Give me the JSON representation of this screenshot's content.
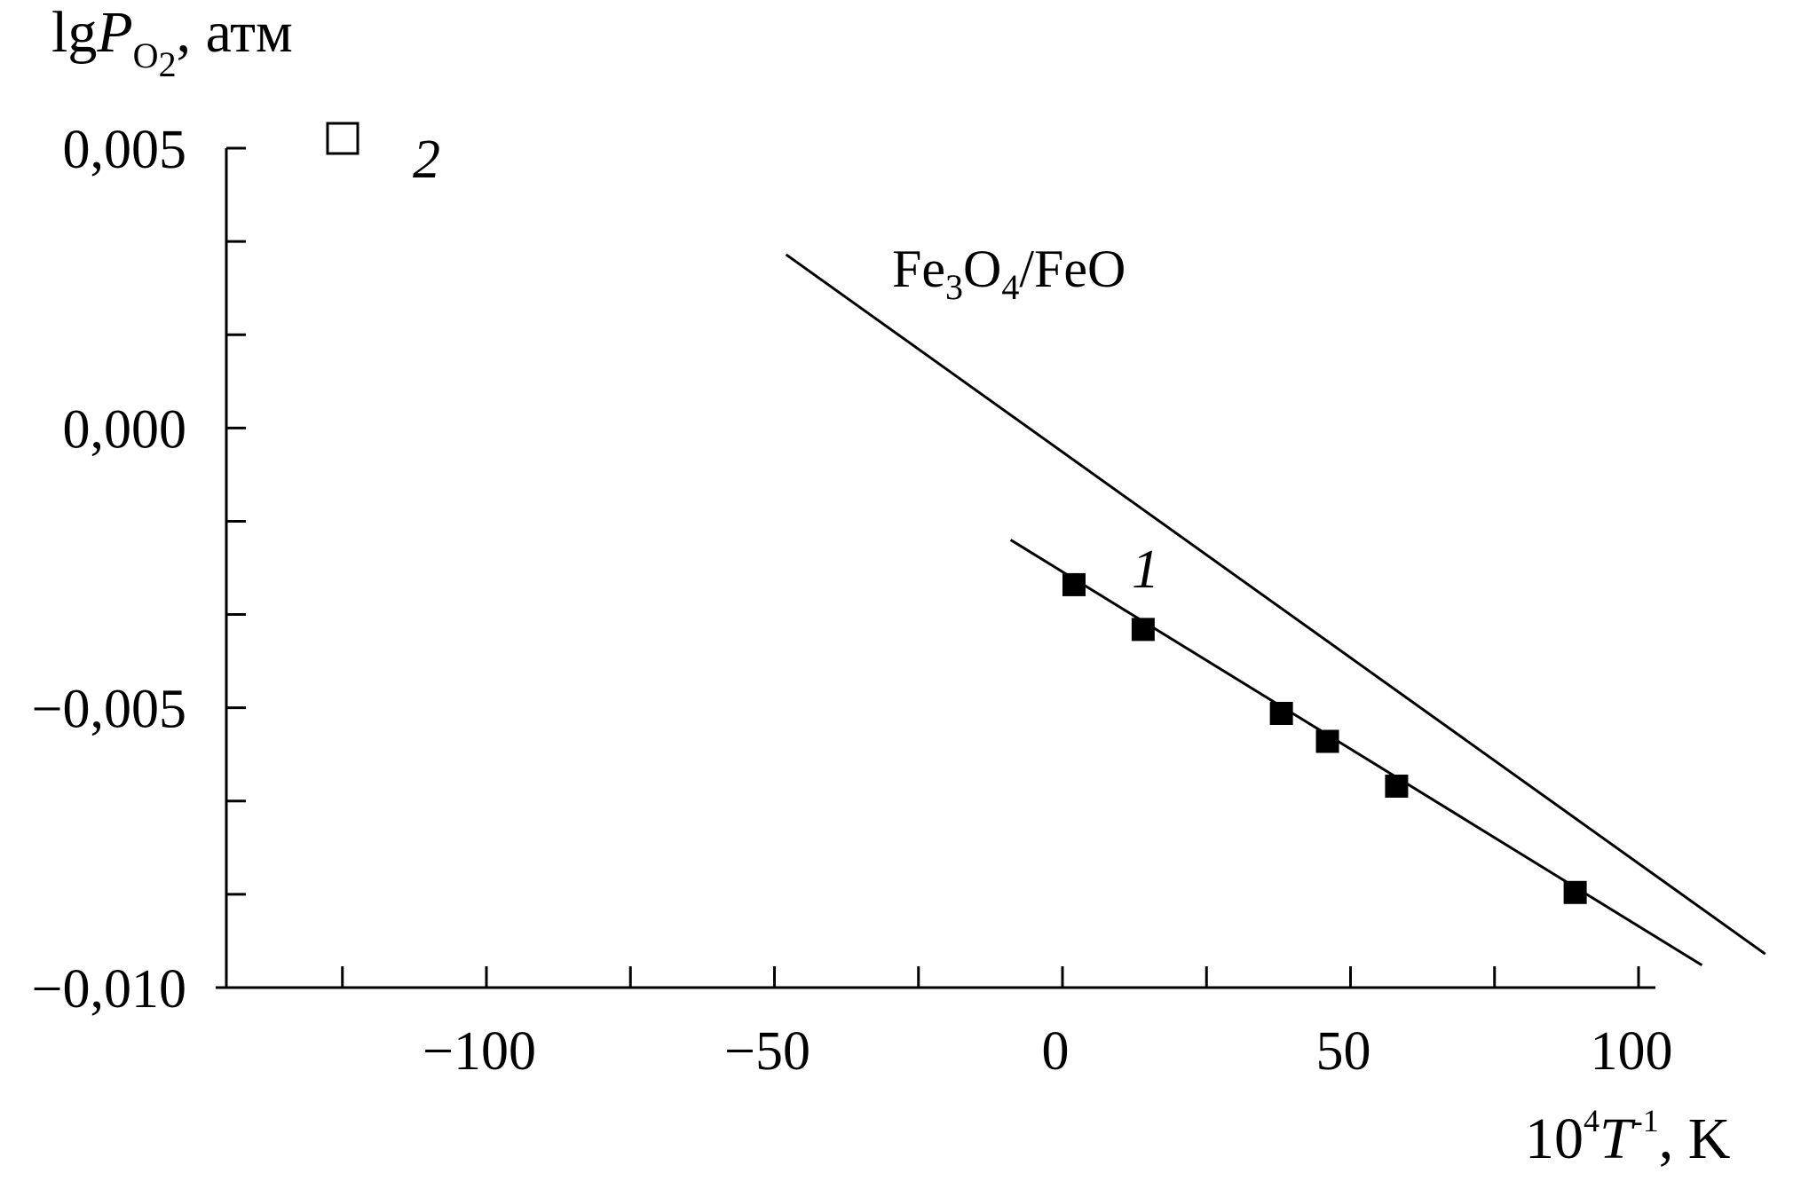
{
  "chart_data": {
    "type": "line",
    "title": "",
    "xlabel": {
      "base": "10",
      "sup": "4",
      "var": "T",
      "exp": "-1",
      "unit": ", K"
    },
    "ylabel": {
      "prefix": "lg",
      "var": "P",
      "sub": "O",
      "subsub": "2",
      "unit": ", атм"
    },
    "xlim": [
      -145,
      105
    ],
    "ylim": [
      -0.01,
      0.005
    ],
    "x_ticks": [
      -100,
      -50,
      0,
      50,
      100
    ],
    "x_tick_labels": [
      "−100",
      "−50",
      "0",
      "50",
      "100"
    ],
    "y_ticks": [
      0.005,
      0.0,
      -0.005,
      -0.01
    ],
    "y_tick_labels": [
      "0,005",
      "0,000",
      "−0,005",
      "−0,010"
    ],
    "x_minor_step": 25,
    "y_minor_step": 0.00167,
    "grid": false,
    "series": [
      {
        "name": "1",
        "marker": "filled-square",
        "points": [
          {
            "x": 2,
            "y": -0.0028
          },
          {
            "x": 14,
            "y": -0.0036
          },
          {
            "x": 38,
            "y": -0.0051
          },
          {
            "x": 46,
            "y": -0.0056
          },
          {
            "x": 58,
            "y": -0.0064
          },
          {
            "x": 89,
            "y": -0.0083
          }
        ],
        "fit_line": [
          {
            "x": -9,
            "y": -0.002
          },
          {
            "x": 111,
            "y": -0.0096
          }
        ]
      },
      {
        "name": "Fe3O4/FeO",
        "marker": "none",
        "fit_line": [
          {
            "x": -48,
            "y": 0.0031
          },
          {
            "x": 122,
            "y": -0.0094
          }
        ]
      }
    ],
    "legend": {
      "placement": "top-left",
      "entries": [
        {
          "marker": "open-square",
          "label": "2"
        }
      ]
    },
    "annotations": {
      "series1_label": "1",
      "ref_line_label": {
        "a": "Fe",
        "a_sub": "3",
        "b": "O",
        "b_sub": "4",
        "rest": "/FeO"
      }
    }
  }
}
